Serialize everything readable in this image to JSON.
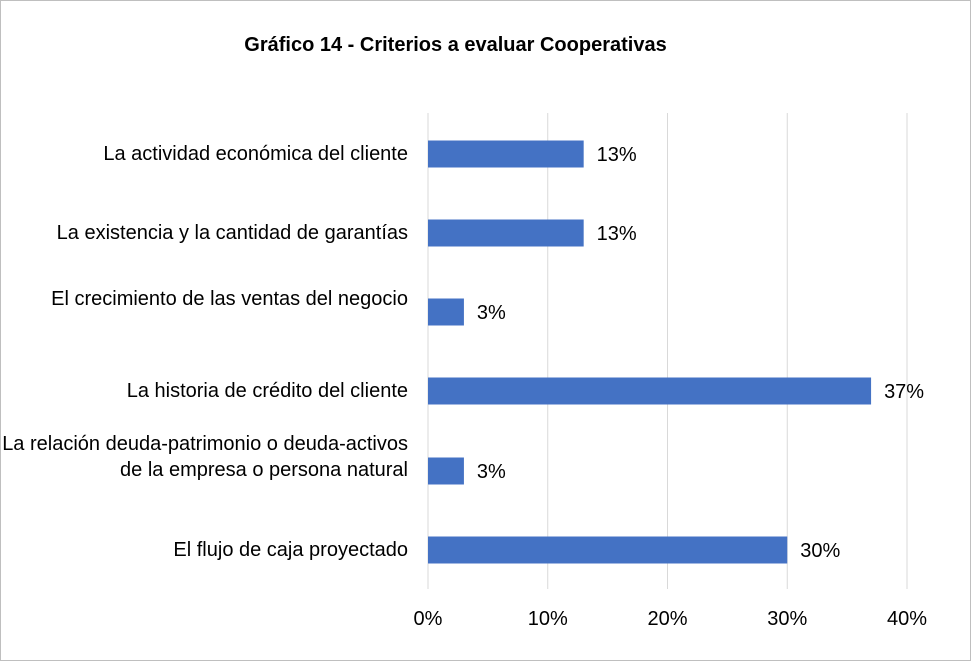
{
  "chart_data": {
    "type": "bar",
    "orientation": "horizontal",
    "title": "Gráfico 14 - Criterios a evaluar Cooperativas",
    "categories": [
      "La actividad económica del cliente",
      "La existencia y la cantidad de garantías",
      "El crecimiento de las ventas del negocio",
      "La historia de crédito del cliente",
      "La relación deuda-patrimonio o deuda-activos de la empresa o persona natural",
      "El flujo de caja proyectado"
    ],
    "values": [
      13,
      13,
      3,
      37,
      3,
      30
    ],
    "value_labels": [
      "13%",
      "13%",
      "3%",
      "37%",
      "3%",
      "30%"
    ],
    "xlim": [
      0,
      40
    ],
    "x_ticks": [
      "0%",
      "10%",
      "20%",
      "30%",
      "40%"
    ],
    "x_gridlines": true,
    "legend": "none",
    "bar_color": "#4472c4",
    "grid_color": "#d9d9d9"
  }
}
